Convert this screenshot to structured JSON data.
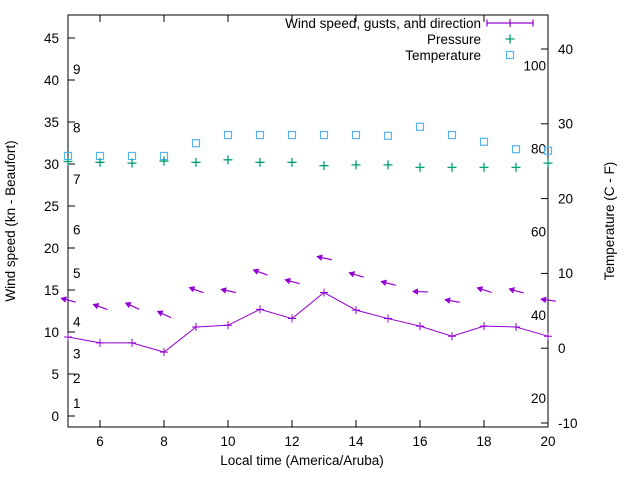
{
  "colors": {
    "wind": "#9400D3",
    "pressure": "#009E73",
    "temperature": "#56B4E9",
    "axis": "#000000",
    "background": "#ffffff"
  },
  "chart_data": {
    "type": "line",
    "title": "",
    "x": {
      "label": "Local time (America/Aruba)",
      "range": [
        5,
        20
      ],
      "ticks": [
        6,
        8,
        10,
        12,
        14,
        16,
        18,
        20
      ]
    },
    "y_left": {
      "label": "Wind speed (kn - Beaufort)",
      "range": [
        0,
        45
      ],
      "ticks": [
        0,
        5,
        10,
        15,
        20,
        25,
        30,
        35,
        40,
        45
      ]
    },
    "y_right": {
      "label": "Temperature (C - F)",
      "range_c": [
        -10,
        40
      ],
      "ticks_c": [
        -10,
        0,
        10,
        20,
        30,
        40
      ]
    },
    "beaufort_scale_labels": [
      {
        "text": "1",
        "kn": 1.5
      },
      {
        "text": "2",
        "kn": 4.5
      },
      {
        "text": "3",
        "kn": 7.4
      },
      {
        "text": "4",
        "kn": 11.2
      },
      {
        "text": "5",
        "kn": 17.0
      },
      {
        "text": "6",
        "kn": 22.2
      },
      {
        "text": "7",
        "kn": 28.2
      },
      {
        "text": "8",
        "kn": 34.3
      },
      {
        "text": "9",
        "kn": 41.3
      }
    ],
    "fahrenheit_scale_labels": [
      20,
      40,
      60,
      80,
      100
    ],
    "hours": [
      5,
      6,
      7,
      8,
      9,
      10,
      11,
      12,
      13,
      14,
      15,
      16,
      17,
      18,
      19,
      20
    ],
    "series": [
      {
        "name": "Wind speed, gusts, and direction",
        "style": "line-with-plus-markers",
        "axis": "left",
        "unit": "kn",
        "values": [
          9.4,
          8.7,
          8.7,
          7.6,
          10.6,
          10.8,
          12.7,
          11.6,
          14.7,
          12.6,
          11.6,
          10.7,
          9.5,
          10.7,
          10.6,
          9.5
        ]
      },
      {
        "name": "Wind gusts with direction arrows",
        "style": "direction-arrows",
        "axis": "left",
        "unit": "kn",
        "values": [
          13.8,
          13.0,
          13.1,
          12.1,
          15.0,
          14.9,
          17.1,
          16.0,
          18.8,
          16.8,
          15.8,
          14.8,
          13.7,
          15.0,
          14.9,
          13.8
        ],
        "arrow_tilt_deg": [
          15,
          20,
          25,
          25,
          20,
          12,
          20,
          15,
          12,
          17,
          15,
          2,
          10,
          18,
          15,
          8
        ]
      },
      {
        "name": "Pressure",
        "style": "plus-markers",
        "axis": "left",
        "unit": "inHg",
        "values": [
          30.3,
          30.2,
          30.1,
          30.35,
          30.2,
          30.5,
          30.2,
          30.2,
          29.8,
          29.9,
          29.9,
          29.6,
          29.6,
          29.6,
          29.6,
          30.1
        ]
      },
      {
        "name": "Temperature",
        "style": "open-square-markers",
        "axis": "right",
        "unit": "C",
        "values": [
          25.7,
          25.7,
          25.7,
          25.7,
          27.4,
          28.5,
          28.5,
          28.5,
          28.5,
          28.5,
          28.4,
          29.6,
          28.5,
          27.6,
          26.6,
          26.4
        ]
      }
    ],
    "legend": {
      "position": "top-right",
      "entries": [
        {
          "label": "Wind speed, gusts, and direction",
          "marker": "errorbar-line",
          "color_key": "wind"
        },
        {
          "label": "Pressure",
          "marker": "plus",
          "color_key": "pressure"
        },
        {
          "label": "Temperature",
          "marker": "open-square",
          "color_key": "temperature"
        }
      ]
    }
  }
}
